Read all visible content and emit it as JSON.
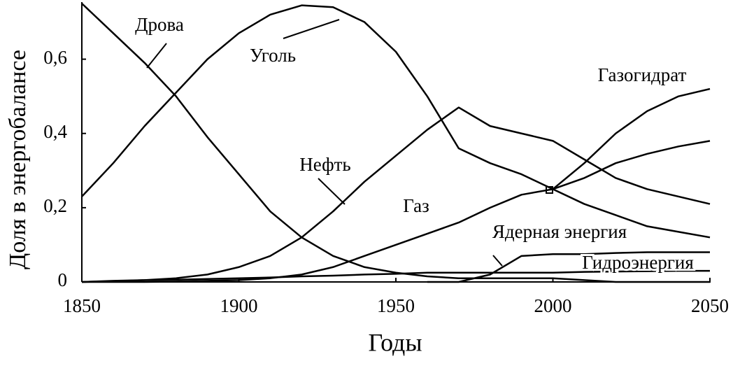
{
  "chart_data": {
    "type": "line",
    "x_label": "Годы",
    "y_label": "Доля в энергобалансе",
    "x": [
      1850,
      1860,
      1870,
      1880,
      1890,
      1900,
      1910,
      1920,
      1930,
      1940,
      1950,
      1960,
      1970,
      1980,
      1990,
      2000,
      2010,
      2020,
      2030,
      2040,
      2050
    ],
    "series": [
      {
        "name": "Дрова",
        "color": "#000000",
        "values": [
          0.75,
          0.67,
          0.59,
          0.5,
          0.39,
          0.29,
          0.19,
          0.12,
          0.07,
          0.04,
          0.025,
          0.015,
          0.01,
          0.01,
          0.01,
          0.01,
          0.005,
          0,
          0,
          0,
          0
        ]
      },
      {
        "name": "Уголь",
        "color": "#000000",
        "values": [
          0.23,
          0.32,
          0.42,
          0.51,
          0.6,
          0.67,
          0.72,
          0.745,
          0.74,
          0.7,
          0.62,
          0.5,
          0.36,
          0.32,
          0.29,
          0.25,
          0.21,
          0.18,
          0.15,
          0.135,
          0.12
        ]
      },
      {
        "name": "Нефть",
        "color": "#000000",
        "values": [
          0,
          0.002,
          0.005,
          0.01,
          0.02,
          0.04,
          0.07,
          0.12,
          0.19,
          0.27,
          0.34,
          0.41,
          0.47,
          0.42,
          0.4,
          0.38,
          0.33,
          0.28,
          0.25,
          0.23,
          0.21
        ]
      },
      {
        "name": "Газ",
        "color": "#000000",
        "values": [
          0,
          0,
          0,
          0.001,
          0.003,
          0.005,
          0.01,
          0.02,
          0.04,
          0.07,
          0.1,
          0.13,
          0.16,
          0.2,
          0.235,
          0.25,
          0.28,
          0.32,
          0.345,
          0.365,
          0.38
        ]
      },
      {
        "name": "Газогидрат",
        "color": "#000000",
        "values": [
          null,
          null,
          null,
          null,
          null,
          null,
          null,
          null,
          null,
          null,
          null,
          null,
          null,
          null,
          null,
          0.25,
          0.32,
          0.4,
          0.46,
          0.5,
          0.52
        ]
      },
      {
        "name": "Ядерная энергия",
        "color": "#000000",
        "values": [
          null,
          null,
          null,
          null,
          null,
          null,
          null,
          null,
          null,
          null,
          null,
          0,
          0,
          0.02,
          0.07,
          0.075,
          0.075,
          0.078,
          0.08,
          0.08,
          0.08
        ]
      },
      {
        "name": "Гидроэнергия",
        "color": "#000000",
        "values": [
          0,
          0.003,
          0.005,
          0.006,
          0.008,
          0.01,
          0.012,
          0.015,
          0.017,
          0.02,
          0.022,
          0.025,
          0.025,
          0.025,
          0.025,
          0.025,
          0.027,
          0.028,
          0.029,
          0.03,
          0.03
        ]
      }
    ],
    "xlim": [
      1850,
      2050
    ],
    "xticks": [
      1850,
      1900,
      1950,
      2000,
      2050
    ],
    "ylim": [
      0,
      0.75
    ],
    "yticks": [
      0,
      {
        "value": 0.2,
        "label": "0,2"
      },
      {
        "value": 0.4,
        "label": "0,4"
      },
      {
        "value": 0.6,
        "label": "0,6"
      }
    ]
  }
}
